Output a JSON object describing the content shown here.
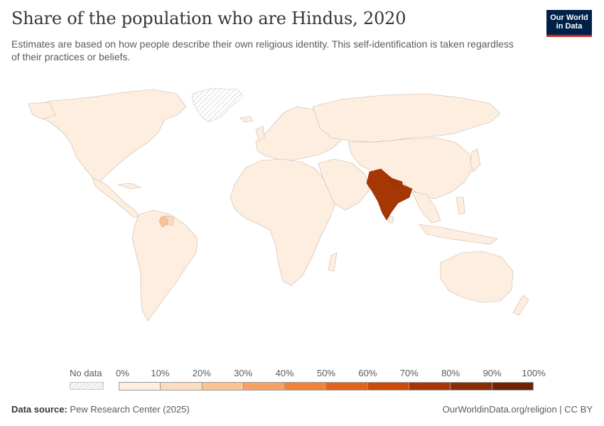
{
  "header": {
    "title": "Share of the population who are Hindus, 2020",
    "subtitle": "Estimates are based on how people describe their own religious identity. This self-identification is taken regardless of their practices or beliefs."
  },
  "logo": {
    "line1": "Our World",
    "line2": "in Data",
    "bg": "#002147",
    "accent": "#ce261e"
  },
  "legend": {
    "no_data_label": "No data",
    "ticks": [
      "0%",
      "10%",
      "20%",
      "30%",
      "40%",
      "50%",
      "60%",
      "70%",
      "80%",
      "90%",
      "100%"
    ],
    "colors": [
      "#fdeee0",
      "#fcdcbe",
      "#fbc392",
      "#f7a265",
      "#f08339",
      "#e2631c",
      "#cc4a08",
      "#a63603",
      "#8a2c03",
      "#6f2203"
    ]
  },
  "map": {
    "highlight": [
      {
        "country": "India",
        "color": "#a63603"
      },
      {
        "country": "Nepal",
        "color": "#a63603"
      },
      {
        "country": "Guyana",
        "color": "#fbc392"
      },
      {
        "country": "Suriname",
        "color": "#fcdcbe"
      }
    ],
    "base_color": "#fdeee0",
    "no_data_region": "Greenland"
  },
  "footer": {
    "source_label": "Data source:",
    "source_text": "Pew Research Center (2025)",
    "right_text": "OurWorldinData.org/religion | CC BY"
  }
}
